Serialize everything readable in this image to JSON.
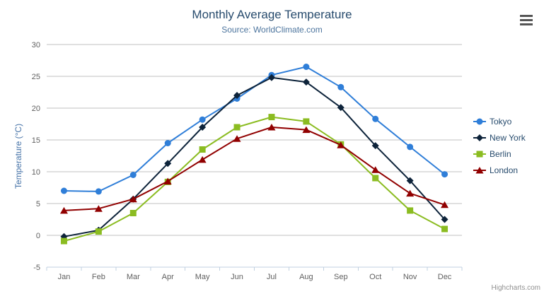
{
  "credits": "Highcharts.com",
  "chart_data": {
    "type": "line",
    "title": "Monthly Average Temperature",
    "subtitle": "Source: WorldClimate.com",
    "xlabel": "",
    "ylabel": "Temperature (°C)",
    "ylim": [
      -5,
      30
    ],
    "ytick_step": 5,
    "grid": true,
    "legend_position": "right",
    "categories": [
      "Jan",
      "Feb",
      "Mar",
      "Apr",
      "May",
      "Jun",
      "Jul",
      "Aug",
      "Sep",
      "Oct",
      "Nov",
      "Dec"
    ],
    "series": [
      {
        "name": "Tokyo",
        "color": "#2f7ed8",
        "marker": "circle",
        "values": [
          7.0,
          6.9,
          9.5,
          14.5,
          18.2,
          21.5,
          25.2,
          26.5,
          23.3,
          18.3,
          13.9,
          9.6
        ]
      },
      {
        "name": "New York",
        "color": "#0d233a",
        "marker": "diamond",
        "values": [
          -0.2,
          0.8,
          5.7,
          11.3,
          17.0,
          22.0,
          24.8,
          24.1,
          20.1,
          14.1,
          8.6,
          2.5
        ]
      },
      {
        "name": "Berlin",
        "color": "#8bbc21",
        "marker": "square",
        "values": [
          -0.9,
          0.6,
          3.5,
          8.4,
          13.5,
          17.0,
          18.6,
          17.9,
          14.3,
          9.0,
          3.9,
          1.0
        ]
      },
      {
        "name": "London",
        "color": "#910000",
        "marker": "triangle",
        "values": [
          3.9,
          4.2,
          5.7,
          8.5,
          11.9,
          15.2,
          17.0,
          16.6,
          14.2,
          10.3,
          6.6,
          4.8
        ]
      }
    ],
    "axis_colors": {
      "grid": "#c0c0c0",
      "axis_line": "#c0d0e0",
      "labels": "#606060"
    }
  }
}
